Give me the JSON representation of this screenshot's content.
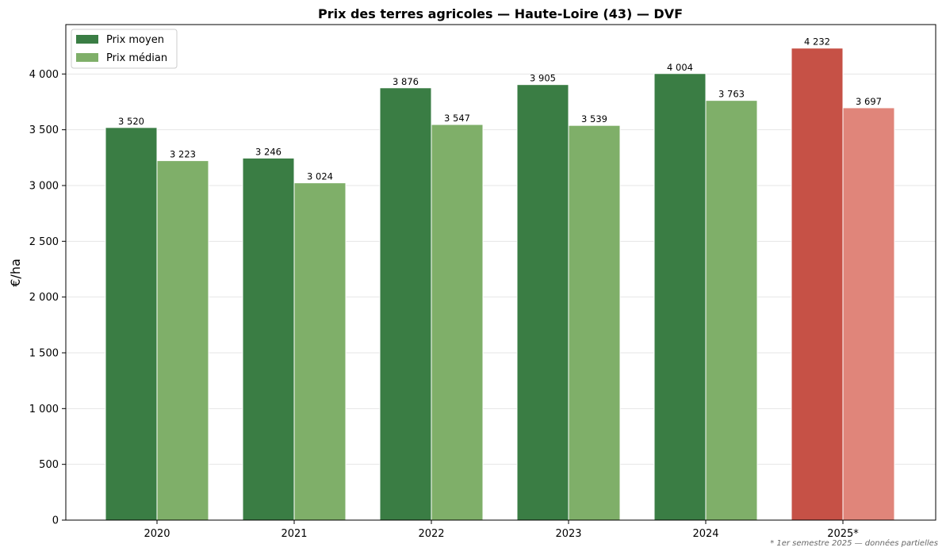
{
  "chart_data": {
    "type": "bar",
    "title": "Prix des terres agricoles — Haute-Loire (43) — DVF",
    "xlabel": "",
    "ylabel": "€/ha",
    "categories": [
      "2020",
      "2021",
      "2022",
      "2023",
      "2024",
      "2025*"
    ],
    "series": [
      {
        "name": "Prix moyen",
        "values": [
          3520,
          3246,
          3876,
          3905,
          4004,
          4232
        ],
        "labels": [
          "3 520",
          "3 246",
          "3 876",
          "3 905",
          "4 004",
          "4 232"
        ],
        "colors": [
          "#3a7d44",
          "#3a7d44",
          "#3a7d44",
          "#3a7d44",
          "#3a7d44",
          "#c65146"
        ]
      },
      {
        "name": "Prix médian",
        "values": [
          3223,
          3024,
          3547,
          3539,
          3763,
          3697
        ],
        "labels": [
          "3 223",
          "3 024",
          "3 547",
          "3 539",
          "3 763",
          "3 697"
        ],
        "colors": [
          "#7faf69",
          "#7faf69",
          "#7faf69",
          "#7faf69",
          "#7faf69",
          "#e0857a"
        ]
      }
    ],
    "ylim": [
      0,
      4443
    ],
    "yticks": [
      0,
      500,
      1000,
      1500,
      2000,
      2500,
      3000,
      3500,
      4000
    ],
    "ytick_labels": [
      "0",
      "500",
      "1 000",
      "1 500",
      "2 000",
      "2 500",
      "3 000",
      "3 500",
      "4 000"
    ],
    "grid": "y",
    "legend": "top-left",
    "footnote": "* 1er semestre 2025 — données partielles"
  }
}
